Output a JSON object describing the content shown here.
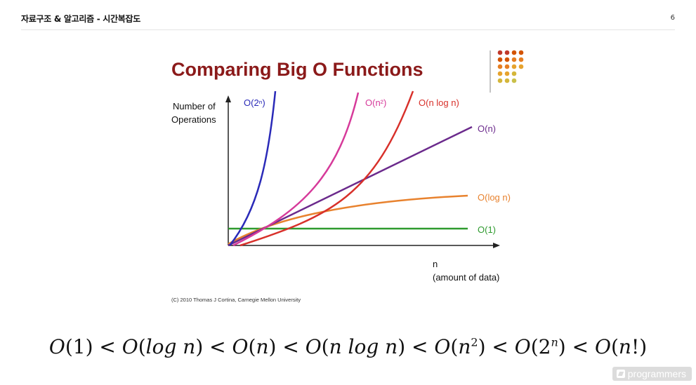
{
  "header": {
    "title": "자료구조 & 알고리즘 - 시간복잡도",
    "page_number": "6"
  },
  "figure": {
    "title": "Comparing Big O Functions",
    "y_axis_label_line1": "Number of",
    "y_axis_label_line2": "Operations",
    "x_axis_label_line1": "n",
    "x_axis_label_line2": "(amount of data)",
    "credit": "(C) 2010 Thomas J Cortina, Carnegie Mellon University",
    "series_labels": {
      "o2n": "O(2ⁿ)",
      "on2": "O(n²)",
      "onlogn": "O(n log n)",
      "on": "O(n)",
      "ologn": "O(log n)",
      "o1": "O(1)"
    },
    "colors": {
      "o2n": "#2a2ab8",
      "on2": "#d63a9a",
      "onlogn": "#d8302a",
      "on": "#6b2a8c",
      "ologn": "#e8822e",
      "o1": "#2e9a2e",
      "title": "#8b1a1a"
    }
  },
  "formula": {
    "parts": [
      {
        "t": "O",
        "i": true
      },
      {
        "t": "(1)"
      },
      {
        "t": " < "
      },
      {
        "t": "O",
        "i": true
      },
      {
        "t": "("
      },
      {
        "t": "log n",
        "i": true
      },
      {
        "t": ")"
      },
      {
        "t": " < "
      },
      {
        "t": "O",
        "i": true
      },
      {
        "t": "("
      },
      {
        "t": "n",
        "i": true
      },
      {
        "t": ")"
      },
      {
        "t": " < "
      },
      {
        "t": "O",
        "i": true
      },
      {
        "t": "("
      },
      {
        "t": "n log n",
        "i": true
      },
      {
        "t": ")"
      },
      {
        "t": " < "
      },
      {
        "t": "O",
        "i": true
      },
      {
        "t": "("
      },
      {
        "t": "n",
        "i": true
      },
      {
        "t": "2",
        "sup": true
      },
      {
        "t": ")"
      },
      {
        "t": " < "
      },
      {
        "t": "O",
        "i": true
      },
      {
        "t": "(2"
      },
      {
        "t": "n",
        "i": true,
        "sup": true
      },
      {
        "t": ")"
      },
      {
        "t": " < "
      },
      {
        "t": "O",
        "i": true
      },
      {
        "t": "("
      },
      {
        "t": "n",
        "i": true
      },
      {
        "t": "!)"
      }
    ]
  },
  "watermark": {
    "text": "programmers"
  }
}
